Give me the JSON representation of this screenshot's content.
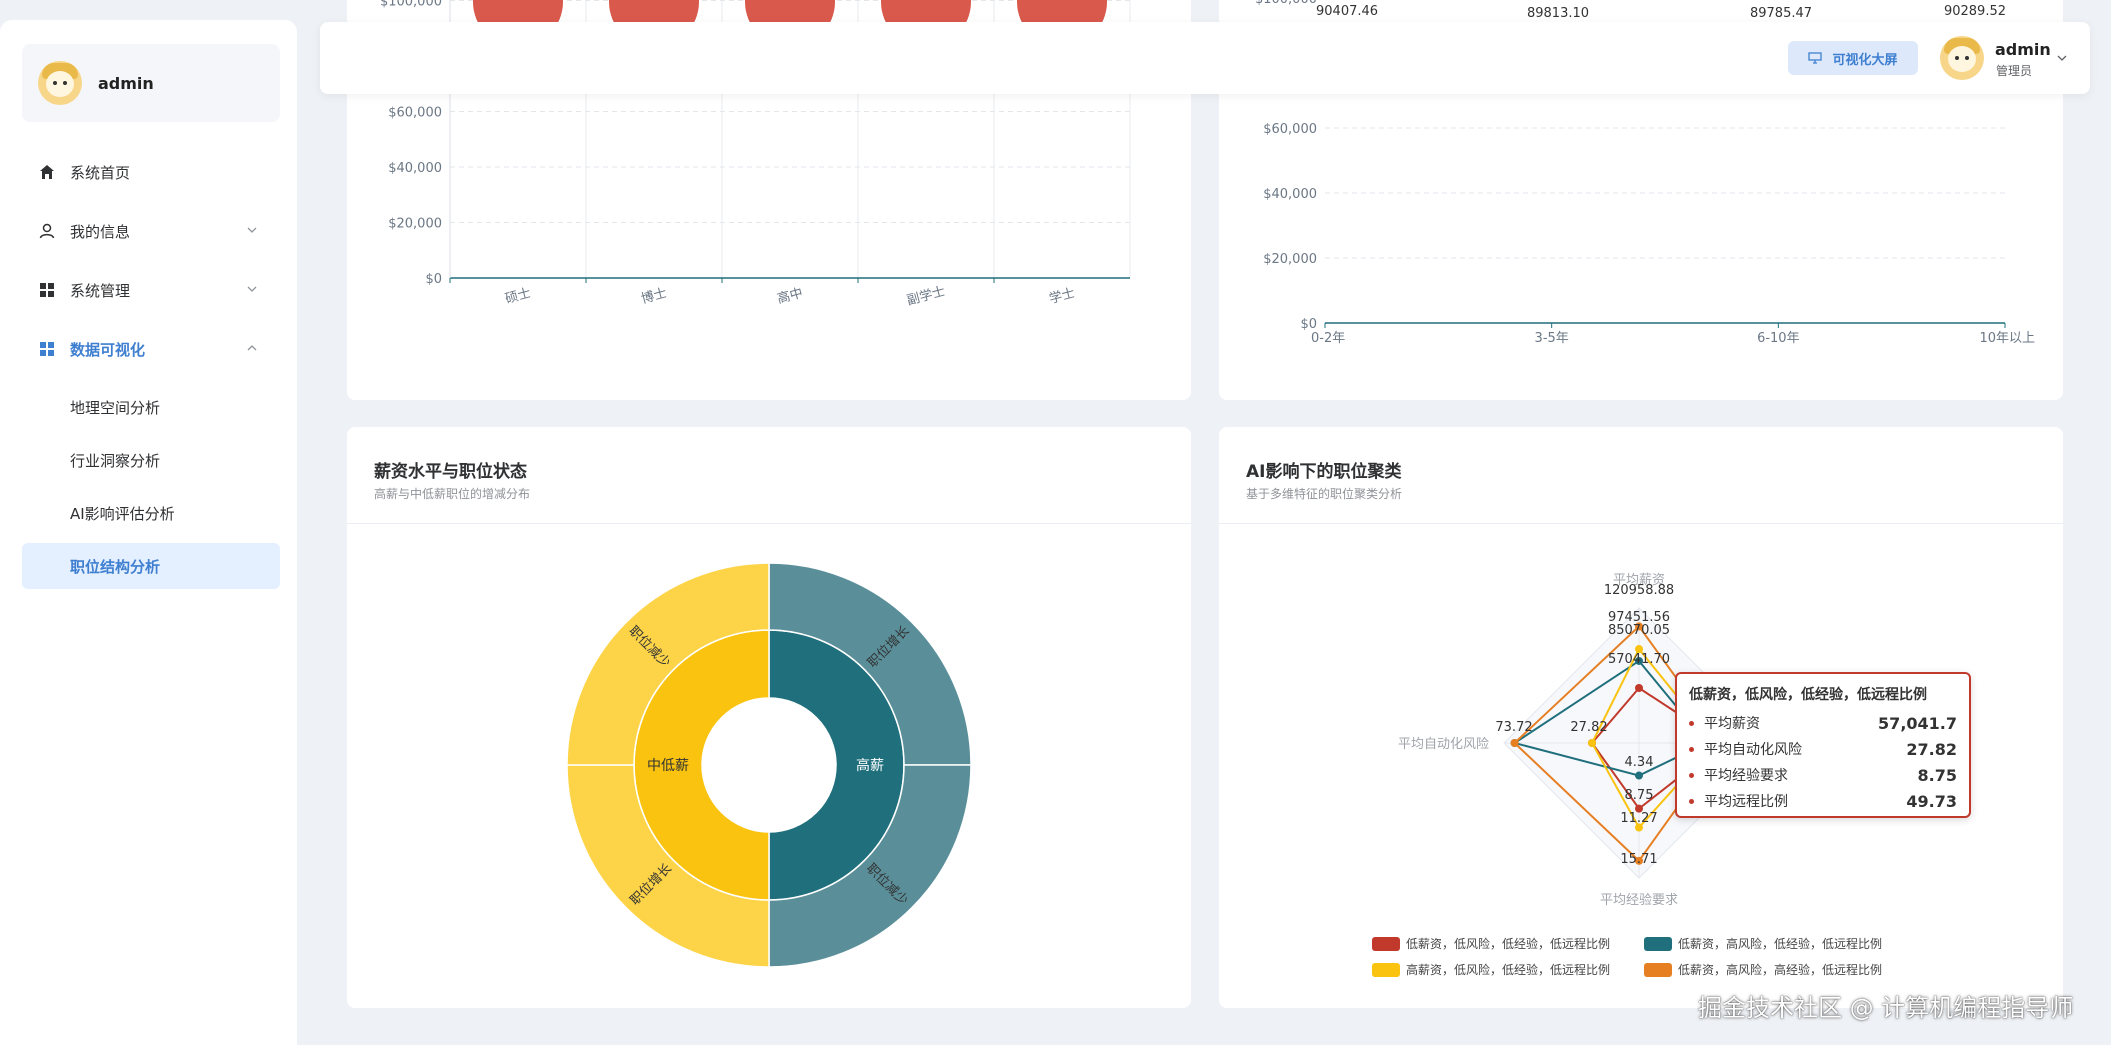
{
  "sidebar": {
    "username": "admin",
    "menu": [
      {
        "label": "系统首页"
      },
      {
        "label": "我的信息"
      },
      {
        "label": "系统管理"
      },
      {
        "label": "数据可视化"
      }
    ],
    "submenu": [
      {
        "label": "地理空间分析"
      },
      {
        "label": "行业洞察分析"
      },
      {
        "label": "AI影响评估分析"
      },
      {
        "label": "职位结构分析"
      }
    ]
  },
  "header": {
    "screen_button": "可视化大屏",
    "user_name": "admin",
    "user_role": "管理员"
  },
  "chart_data": [
    {
      "type": "bar",
      "categories": [
        "硕士",
        "博士",
        "高中",
        "副学士",
        "学士"
      ],
      "ylim": [
        0,
        100000
      ],
      "yticks": [
        "$0",
        "$20,000",
        "$40,000",
        "$60,000",
        "$100,000"
      ]
    },
    {
      "type": "line",
      "categories": [
        "0-2年",
        "3-5年",
        "6-10年",
        "10年以上"
      ],
      "values": [
        90407.46,
        89813.1,
        89785.47,
        90289.52
      ],
      "value_labels": [
        "90407.46",
        "89813.10",
        "89785.47",
        "90289.52"
      ],
      "ylim": [
        0,
        100000
      ],
      "yticks": [
        "$0",
        "$20,000",
        "$40,000",
        "$60,000",
        "$100,000"
      ]
    },
    {
      "type": "pie",
      "title": "薪资水平与职位状态",
      "subtitle": "高薪与中低薪职位的增减分布",
      "inner": [
        {
          "name": "中低薪",
          "value": 50,
          "color": "#f9c30f"
        },
        {
          "name": "高薪",
          "value": 50,
          "color": "#1f6f7c"
        }
      ],
      "outer": [
        {
          "name": "职位增长",
          "value": 25,
          "color": "#5a8f9a"
        },
        {
          "name": "职位减少",
          "value": 25,
          "color": "#5a8f9a"
        },
        {
          "name": "职位增长",
          "value": 25,
          "color": "#fdd448"
        },
        {
          "name": "职位减少",
          "value": 25,
          "color": "#fdd448"
        }
      ]
    },
    {
      "type": "radar",
      "title": "AI影响下的职位聚类",
      "subtitle": "基于多维特征的职位聚类分析",
      "indicators": [
        {
          "name": "平均薪资",
          "max": 140000
        },
        {
          "name": "平均自动化风险",
          "max": 80
        },
        {
          "name": "平均经验要求",
          "max": 18
        },
        {
          "name": "平均远程比例",
          "max": 80
        }
      ],
      "axis_top_values": [
        "120958.88",
        "97451.56",
        "85070.05",
        "57041.70"
      ],
      "axis_left_values": [
        "73.72",
        "27.82"
      ],
      "axis_bottom_values": [
        "4.34",
        "8.75",
        "11.27",
        "15.71"
      ],
      "series": [
        {
          "name": "低薪资，低风险，低经验，低远程比例",
          "values": [
            57041.7,
            27.82,
            8.75,
            49.73
          ],
          "color": "#c0392b"
        },
        {
          "name": "低薪资，高风险，低经验，低远程比例",
          "values": [
            85070.05,
            73.72,
            4.34,
            40
          ],
          "color": "#1f6f7c"
        },
        {
          "name": "高薪资，低风险，低经验，低远程比例",
          "values": [
            97451.56,
            27.82,
            11.27,
            45
          ],
          "color": "#f9c30f"
        },
        {
          "name": "低薪资，高风险，高经验，低远程比例",
          "values": [
            120958.88,
            73.72,
            15.71,
            50
          ],
          "color": "#e67e22"
        }
      ],
      "tooltip": {
        "title": "低薪资，低风险，低经验，低远程比例",
        "rows": [
          {
            "label": "平均薪资",
            "value": "57,041.7"
          },
          {
            "label": "平均自动化风险",
            "value": "27.82"
          },
          {
            "label": "平均经验要求",
            "value": "8.75"
          },
          {
            "label": "平均远程比例",
            "value": "49.73"
          }
        ]
      }
    }
  ],
  "watermark": "掘金技术社区 @ 计算机编程指导师",
  "colors": {
    "accent": "#3f7fd0",
    "red": "#c0392b",
    "teal": "#1f6f7c",
    "yellow": "#f9c30f",
    "orange": "#e67e22"
  }
}
